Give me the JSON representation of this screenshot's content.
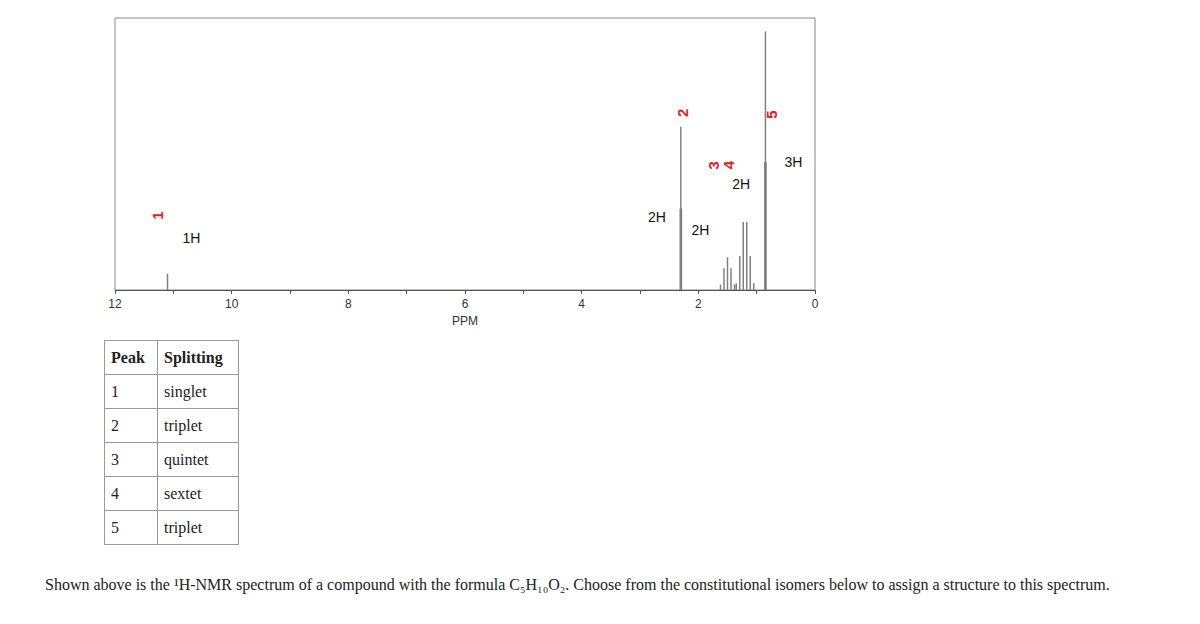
{
  "chart_data": {
    "type": "stick",
    "xlabel": "PPM",
    "color": "#808080",
    "xlim": [
      12,
      0
    ],
    "xticks": [
      12,
      10,
      8,
      6,
      4,
      2,
      0
    ],
    "ylim": [
      0,
      100
    ],
    "grid": false,
    "tick_labels": "x",
    "peaks": [
      {
        "label": "1",
        "integration": "1H",
        "x": [
          11.1
        ],
        "heights": [
          6
        ]
      },
      {
        "label": "2",
        "integration": "2H",
        "x": [
          2.31,
          2.3,
          2.29
        ],
        "heights": [
          30,
          60,
          30
        ]
      },
      {
        "label": "3",
        "integration": "2H",
        "x": [
          1.62,
          1.56,
          1.5,
          1.44,
          1.38
        ],
        "heights": [
          2,
          8,
          12,
          8,
          2
        ]
      },
      {
        "label": "4",
        "integration": "2H",
        "x": [
          1.35,
          1.29,
          1.23,
          1.17,
          1.11,
          1.05
        ],
        "heights": [
          2.5,
          12.5,
          25,
          25,
          12.5,
          2.5
        ]
      },
      {
        "label": "5",
        "integration": "3H",
        "x": [
          0.86,
          0.85,
          0.84
        ],
        "heights": [
          47,
          95,
          47
        ]
      }
    ]
  },
  "table": {
    "header": [
      "Peak",
      "Splitting"
    ],
    "rows": [
      [
        "1",
        "singlet"
      ],
      [
        "2",
        "triplet"
      ],
      [
        "3",
        "quintet"
      ],
      [
        "4",
        "sextet"
      ],
      [
        "5",
        "triplet"
      ]
    ]
  },
  "caption": "Shown above is the ¹H-NMR spectrum of a compound with the formula C₅H₁₀O₂. Choose from the constitutional isomers below to assign a structure to this spectrum."
}
